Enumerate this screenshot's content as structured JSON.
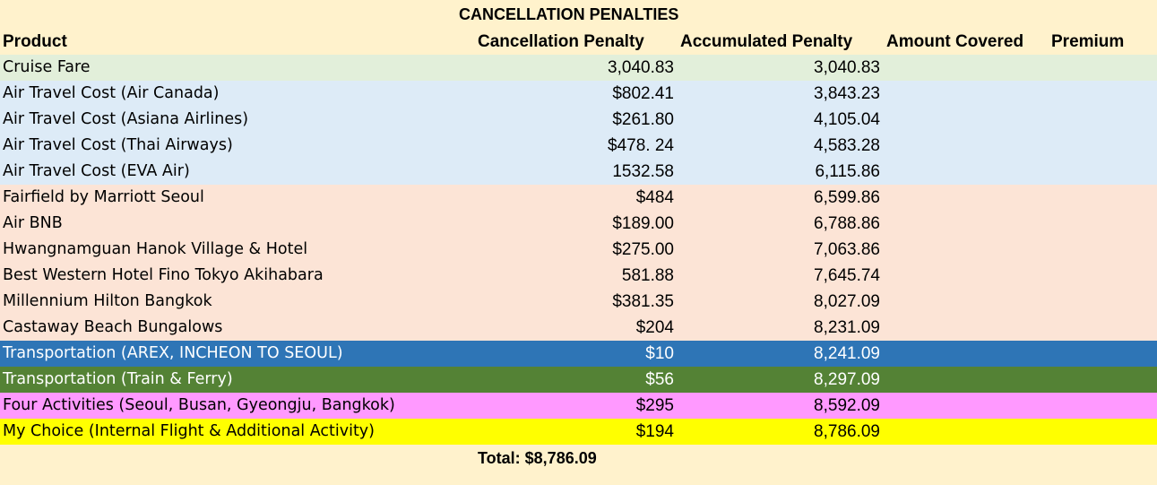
{
  "title": "CANCELLATION PENALTIES",
  "headers": {
    "product": "Product",
    "cancellation_penalty": "Cancellation Penalty",
    "accumulated_penalty": "Accumulated Penalty",
    "amount_covered": "Amount Covered",
    "premium": "Premium"
  },
  "rows": [
    {
      "product": "Cruise Fare",
      "penalty": "3,040.83",
      "accumulated": "3,040.83",
      "bg": "#e2efda",
      "fg": "#000000"
    },
    {
      "product": "Air Travel Cost (Air Canada)",
      "penalty": "$802.41",
      "accumulated": "3,843.23",
      "bg": "#ddebf7",
      "fg": "#000000"
    },
    {
      "product": "Air Travel Cost (Asiana Airlines)",
      "penalty": "$261.80",
      "accumulated": "4,105.04",
      "bg": "#ddebf7",
      "fg": "#000000"
    },
    {
      "product": "Air Travel Cost (Thai Airways)",
      "penalty": "$478. 24",
      "accumulated": "4,583.28",
      "bg": "#ddebf7",
      "fg": "#000000"
    },
    {
      "product": "Air Travel Cost (EVA Air)",
      "penalty": "1532.58",
      "accumulated": "6,115.86",
      "bg": "#ddebf7",
      "fg": "#000000"
    },
    {
      "product": "Fairfield by Marriott Seoul",
      "penalty": "$484",
      "accumulated": "6,599.86",
      "bg": "#fce4d6",
      "fg": "#000000"
    },
    {
      "product": "Air BNB",
      "penalty": "$189.00",
      "accumulated": "6,788.86",
      "bg": "#fce4d6",
      "fg": "#000000"
    },
    {
      "product": "Hwangnamguan Hanok Village & Hotel",
      "penalty": "$275.00",
      "accumulated": "7,063.86",
      "bg": "#fce4d6",
      "fg": "#000000"
    },
    {
      "product": "Best Western Hotel Fino Tokyo Akihabara",
      "penalty": "581.88",
      "accumulated": "7,645.74",
      "bg": "#fce4d6",
      "fg": "#000000"
    },
    {
      "product": "Millennium Hilton Bangkok",
      "penalty": "$381.35",
      "accumulated": "8,027.09",
      "bg": "#fce4d6",
      "fg": "#000000"
    },
    {
      "product": "Castaway Beach Bungalows",
      "penalty": "$204",
      "accumulated": "8,231.09",
      "bg": "#fce4d6",
      "fg": "#000000"
    },
    {
      "product": "Transportation (AREX, INCHEON TO SEOUL)",
      "penalty": "$10",
      "accumulated": "8,241.09",
      "bg": "#2e75b6",
      "fg": "#ffffff"
    },
    {
      "product": "Transportation (Train & Ferry)",
      "penalty": "$56",
      "accumulated": "8,297.09",
      "bg": "#548235",
      "fg": "#ffffff"
    },
    {
      "product": "Four Activities (Seoul, Busan, Gyeongju, Bangkok)",
      "penalty": "$295",
      "accumulated": "8,592.09",
      "bg": "#ff99ff",
      "fg": "#000000"
    },
    {
      "product": "My Choice (Internal Flight & Additional Activity)",
      "penalty": "$194",
      "accumulated": "8,786.09",
      "bg": "#ffff00",
      "fg": "#000000"
    }
  ],
  "total": "Total: $8,786.09"
}
